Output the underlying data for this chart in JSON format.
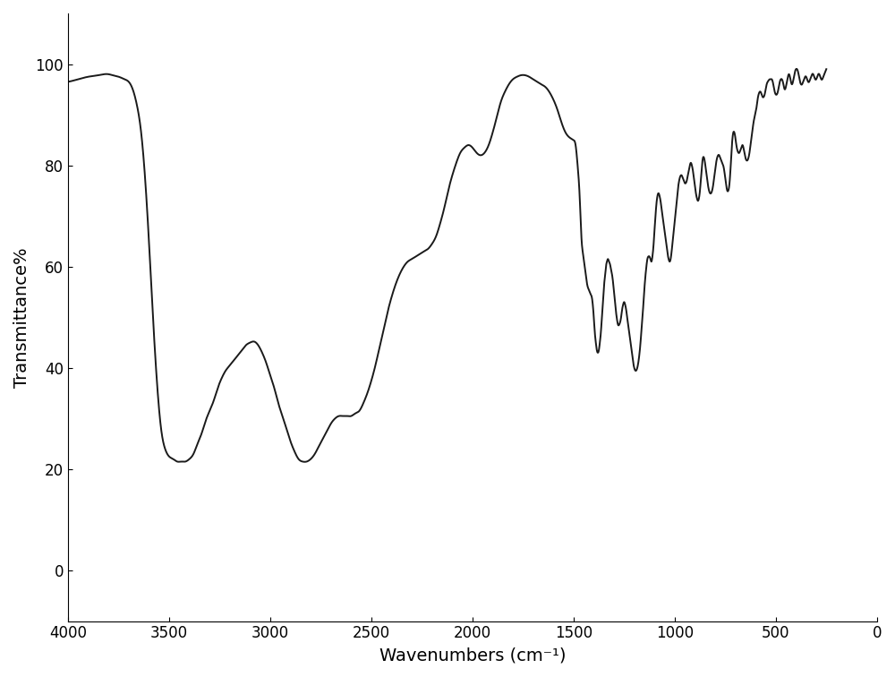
{
  "title": "",
  "xlabel": "Wavenumbers (cm⁻¹)",
  "ylabel": "Transmittance%",
  "xlim": [
    4000,
    0
  ],
  "ylim": [
    -10,
    110
  ],
  "xticks": [
    4000,
    3500,
    3000,
    2500,
    2000,
    1500,
    1000,
    500,
    0
  ],
  "yticks": [
    0,
    20,
    40,
    60,
    80,
    100
  ],
  "background_color": "#ffffff",
  "line_color": "#1a1a1a",
  "line_width": 1.4,
  "keypoints": [
    [
      4000,
      96.5
    ],
    [
      3950,
      97.0
    ],
    [
      3900,
      97.5
    ],
    [
      3850,
      97.8
    ],
    [
      3800,
      98.0
    ],
    [
      3780,
      97.8
    ],
    [
      3750,
      97.5
    ],
    [
      3720,
      97.0
    ],
    [
      3700,
      96.5
    ],
    [
      3680,
      95.0
    ],
    [
      3660,
      92.0
    ],
    [
      3640,
      87.0
    ],
    [
      3620,
      78.0
    ],
    [
      3600,
      65.0
    ],
    [
      3580,
      50.0
    ],
    [
      3560,
      37.0
    ],
    [
      3540,
      28.0
    ],
    [
      3520,
      24.0
    ],
    [
      3500,
      22.5
    ],
    [
      3480,
      22.0
    ],
    [
      3460,
      21.5
    ],
    [
      3440,
      21.5
    ],
    [
      3420,
      21.5
    ],
    [
      3400,
      22.0
    ],
    [
      3380,
      23.0
    ],
    [
      3360,
      25.0
    ],
    [
      3340,
      27.0
    ],
    [
      3320,
      29.5
    ],
    [
      3300,
      31.5
    ],
    [
      3280,
      33.5
    ],
    [
      3260,
      36.0
    ],
    [
      3240,
      38.0
    ],
    [
      3220,
      39.5
    ],
    [
      3200,
      40.5
    ],
    [
      3180,
      41.5
    ],
    [
      3160,
      42.5
    ],
    [
      3140,
      43.5
    ],
    [
      3120,
      44.5
    ],
    [
      3100,
      45.0
    ],
    [
      3080,
      45.2
    ],
    [
      3060,
      44.5
    ],
    [
      3040,
      43.0
    ],
    [
      3020,
      41.0
    ],
    [
      3000,
      38.5
    ],
    [
      2980,
      36.0
    ],
    [
      2960,
      33.0
    ],
    [
      2940,
      30.5
    ],
    [
      2920,
      28.0
    ],
    [
      2900,
      25.5
    ],
    [
      2880,
      23.5
    ],
    [
      2860,
      22.0
    ],
    [
      2840,
      21.5
    ],
    [
      2820,
      21.5
    ],
    [
      2800,
      22.0
    ],
    [
      2780,
      23.0
    ],
    [
      2760,
      24.5
    ],
    [
      2740,
      26.0
    ],
    [
      2720,
      27.5
    ],
    [
      2700,
      29.0
    ],
    [
      2680,
      30.0
    ],
    [
      2660,
      30.5
    ],
    [
      2640,
      30.5
    ],
    [
      2620,
      30.5
    ],
    [
      2600,
      30.5
    ],
    [
      2580,
      31.0
    ],
    [
      2560,
      31.5
    ],
    [
      2540,
      33.0
    ],
    [
      2520,
      35.0
    ],
    [
      2500,
      37.5
    ],
    [
      2480,
      40.5
    ],
    [
      2460,
      44.0
    ],
    [
      2440,
      47.5
    ],
    [
      2420,
      51.0
    ],
    [
      2400,
      54.0
    ],
    [
      2380,
      56.5
    ],
    [
      2360,
      58.5
    ],
    [
      2340,
      60.0
    ],
    [
      2320,
      61.0
    ],
    [
      2300,
      61.5
    ],
    [
      2280,
      62.0
    ],
    [
      2260,
      62.5
    ],
    [
      2240,
      63.0
    ],
    [
      2220,
      63.5
    ],
    [
      2200,
      64.5
    ],
    [
      2180,
      66.0
    ],
    [
      2160,
      68.5
    ],
    [
      2140,
      71.5
    ],
    [
      2120,
      75.0
    ],
    [
      2100,
      78.0
    ],
    [
      2080,
      80.5
    ],
    [
      2060,
      82.5
    ],
    [
      2040,
      83.5
    ],
    [
      2020,
      84.0
    ],
    [
      2000,
      83.5
    ],
    [
      1980,
      82.5
    ],
    [
      1960,
      82.0
    ],
    [
      1940,
      82.5
    ],
    [
      1920,
      84.0
    ],
    [
      1900,
      86.5
    ],
    [
      1880,
      89.5
    ],
    [
      1860,
      92.5
    ],
    [
      1840,
      94.5
    ],
    [
      1820,
      96.0
    ],
    [
      1800,
      97.0
    ],
    [
      1780,
      97.5
    ],
    [
      1760,
      97.8
    ],
    [
      1740,
      97.8
    ],
    [
      1720,
      97.5
    ],
    [
      1700,
      97.0
    ],
    [
      1680,
      96.5
    ],
    [
      1660,
      96.0
    ],
    [
      1640,
      95.5
    ],
    [
      1620,
      94.5
    ],
    [
      1600,
      93.0
    ],
    [
      1580,
      91.0
    ],
    [
      1560,
      88.5
    ],
    [
      1540,
      86.5
    ],
    [
      1520,
      85.5
    ],
    [
      1500,
      85.0
    ],
    [
      1490,
      84.0
    ],
    [
      1480,
      80.0
    ],
    [
      1470,
      74.0
    ],
    [
      1460,
      65.0
    ],
    [
      1455,
      63.0
    ],
    [
      1450,
      61.5
    ],
    [
      1445,
      60.0
    ],
    [
      1440,
      58.5
    ],
    [
      1435,
      57.0
    ],
    [
      1430,
      56.0
    ],
    [
      1425,
      55.5
    ],
    [
      1420,
      55.0
    ],
    [
      1415,
      54.5
    ],
    [
      1410,
      54.0
    ],
    [
      1405,
      52.5
    ],
    [
      1400,
      50.0
    ],
    [
      1395,
      47.0
    ],
    [
      1390,
      45.0
    ],
    [
      1385,
      43.5
    ],
    [
      1380,
      43.0
    ],
    [
      1375,
      43.5
    ],
    [
      1370,
      45.0
    ],
    [
      1365,
      47.0
    ],
    [
      1360,
      50.0
    ],
    [
      1355,
      53.0
    ],
    [
      1350,
      56.0
    ],
    [
      1345,
      58.0
    ],
    [
      1340,
      60.0
    ],
    [
      1335,
      61.0
    ],
    [
      1330,
      61.5
    ],
    [
      1325,
      61.0
    ],
    [
      1320,
      60.5
    ],
    [
      1315,
      59.5
    ],
    [
      1310,
      58.5
    ],
    [
      1305,
      57.0
    ],
    [
      1300,
      55.0
    ],
    [
      1295,
      53.0
    ],
    [
      1290,
      51.0
    ],
    [
      1285,
      49.5
    ],
    [
      1280,
      48.5
    ],
    [
      1275,
      48.5
    ],
    [
      1270,
      49.0
    ],
    [
      1265,
      50.0
    ],
    [
      1260,
      51.5
    ],
    [
      1255,
      52.5
    ],
    [
      1250,
      53.0
    ],
    [
      1245,
      52.5
    ],
    [
      1240,
      51.5
    ],
    [
      1235,
      50.0
    ],
    [
      1230,
      48.5
    ],
    [
      1225,
      47.0
    ],
    [
      1220,
      45.5
    ],
    [
      1215,
      44.0
    ],
    [
      1210,
      42.5
    ],
    [
      1205,
      41.0
    ],
    [
      1200,
      40.0
    ],
    [
      1195,
      39.5
    ],
    [
      1190,
      39.5
    ],
    [
      1185,
      40.0
    ],
    [
      1180,
      41.0
    ],
    [
      1175,
      42.5
    ],
    [
      1170,
      44.5
    ],
    [
      1165,
      47.0
    ],
    [
      1160,
      49.5
    ],
    [
      1155,
      52.5
    ],
    [
      1150,
      55.5
    ],
    [
      1145,
      58.0
    ],
    [
      1140,
      60.0
    ],
    [
      1135,
      61.5
    ],
    [
      1130,
      62.0
    ],
    [
      1125,
      62.0
    ],
    [
      1120,
      61.5
    ],
    [
      1115,
      61.0
    ],
    [
      1110,
      62.0
    ],
    [
      1105,
      64.0
    ],
    [
      1100,
      67.0
    ],
    [
      1095,
      70.0
    ],
    [
      1090,
      72.5
    ],
    [
      1085,
      74.0
    ],
    [
      1080,
      74.5
    ],
    [
      1075,
      74.0
    ],
    [
      1070,
      73.0
    ],
    [
      1065,
      71.5
    ],
    [
      1060,
      70.0
    ],
    [
      1055,
      68.5
    ],
    [
      1050,
      67.0
    ],
    [
      1045,
      65.5
    ],
    [
      1040,
      64.0
    ],
    [
      1035,
      62.5
    ],
    [
      1030,
      61.5
    ],
    [
      1025,
      61.0
    ],
    [
      1020,
      61.5
    ],
    [
      1015,
      63.0
    ],
    [
      1010,
      65.0
    ],
    [
      1005,
      67.0
    ],
    [
      1000,
      69.0
    ],
    [
      995,
      71.0
    ],
    [
      990,
      73.0
    ],
    [
      985,
      75.0
    ],
    [
      980,
      76.5
    ],
    [
      975,
      77.5
    ],
    [
      970,
      78.0
    ],
    [
      965,
      78.0
    ],
    [
      960,
      77.5
    ],
    [
      955,
      77.0
    ],
    [
      950,
      76.5
    ],
    [
      945,
      76.5
    ],
    [
      940,
      77.0
    ],
    [
      935,
      78.0
    ],
    [
      930,
      79.0
    ],
    [
      925,
      80.0
    ],
    [
      920,
      80.5
    ],
    [
      915,
      80.0
    ],
    [
      910,
      79.0
    ],
    [
      905,
      77.5
    ],
    [
      900,
      76.0
    ],
    [
      895,
      74.5
    ],
    [
      890,
      73.5
    ],
    [
      885,
      73.0
    ],
    [
      880,
      73.5
    ],
    [
      875,
      75.0
    ],
    [
      870,
      77.5
    ],
    [
      865,
      80.0
    ],
    [
      860,
      81.5
    ],
    [
      855,
      81.5
    ],
    [
      850,
      80.5
    ],
    [
      845,
      79.0
    ],
    [
      840,
      77.5
    ],
    [
      835,
      76.0
    ],
    [
      830,
      75.0
    ],
    [
      825,
      74.5
    ],
    [
      820,
      74.5
    ],
    [
      815,
      75.0
    ],
    [
      810,
      76.0
    ],
    [
      805,
      77.5
    ],
    [
      800,
      79.0
    ],
    [
      795,
      80.5
    ],
    [
      790,
      81.5
    ],
    [
      785,
      82.0
    ],
    [
      780,
      82.0
    ],
    [
      775,
      81.5
    ],
    [
      770,
      81.0
    ],
    [
      765,
      80.5
    ],
    [
      760,
      80.0
    ],
    [
      755,
      79.0
    ],
    [
      750,
      77.5
    ],
    [
      745,
      76.0
    ],
    [
      740,
      75.0
    ],
    [
      735,
      75.0
    ],
    [
      730,
      76.0
    ],
    [
      725,
      78.5
    ],
    [
      720,
      82.0
    ],
    [
      715,
      85.0
    ],
    [
      710,
      86.5
    ],
    [
      705,
      86.5
    ],
    [
      700,
      85.5
    ],
    [
      695,
      84.0
    ],
    [
      690,
      83.0
    ],
    [
      685,
      82.5
    ],
    [
      680,
      82.5
    ],
    [
      675,
      83.0
    ],
    [
      670,
      83.5
    ],
    [
      665,
      84.0
    ],
    [
      660,
      83.5
    ],
    [
      655,
      82.5
    ],
    [
      650,
      81.5
    ],
    [
      645,
      81.0
    ],
    [
      640,
      81.0
    ],
    [
      635,
      81.5
    ],
    [
      630,
      82.5
    ],
    [
      625,
      84.0
    ],
    [
      620,
      85.5
    ],
    [
      615,
      87.0
    ],
    [
      610,
      88.5
    ],
    [
      605,
      89.5
    ],
    [
      600,
      90.5
    ],
    [
      595,
      91.5
    ],
    [
      590,
      93.0
    ],
    [
      585,
      94.0
    ],
    [
      580,
      94.5
    ],
    [
      575,
      94.5
    ],
    [
      570,
      94.0
    ],
    [
      565,
      93.5
    ],
    [
      560,
      93.5
    ],
    [
      555,
      94.0
    ],
    [
      550,
      95.0
    ],
    [
      545,
      96.0
    ],
    [
      540,
      96.5
    ],
    [
      535,
      96.8
    ],
    [
      530,
      97.0
    ],
    [
      525,
      97.0
    ],
    [
      520,
      97.0
    ],
    [
      515,
      96.5
    ],
    [
      510,
      95.5
    ],
    [
      505,
      94.5
    ],
    [
      500,
      94.0
    ],
    [
      495,
      94.0
    ],
    [
      490,
      94.5
    ],
    [
      485,
      95.5
    ],
    [
      480,
      96.5
    ],
    [
      475,
      97.0
    ],
    [
      470,
      97.0
    ],
    [
      465,
      96.5
    ],
    [
      460,
      95.5
    ],
    [
      455,
      95.0
    ],
    [
      450,
      95.5
    ],
    [
      445,
      96.5
    ],
    [
      440,
      97.5
    ],
    [
      435,
      98.0
    ],
    [
      430,
      97.5
    ],
    [
      425,
      96.5
    ],
    [
      420,
      96.0
    ],
    [
      415,
      96.5
    ],
    [
      410,
      97.5
    ],
    [
      405,
      98.5
    ],
    [
      400,
      99.0
    ],
    [
      395,
      99.0
    ],
    [
      390,
      98.5
    ],
    [
      385,
      97.5
    ],
    [
      380,
      96.5
    ],
    [
      375,
      96.0
    ],
    [
      370,
      96.0
    ],
    [
      365,
      96.5
    ],
    [
      360,
      97.0
    ],
    [
      355,
      97.5
    ],
    [
      350,
      97.5
    ],
    [
      345,
      97.0
    ],
    [
      340,
      96.5
    ],
    [
      335,
      96.5
    ],
    [
      330,
      97.0
    ],
    [
      325,
      97.5
    ],
    [
      320,
      98.0
    ],
    [
      315,
      98.0
    ],
    [
      310,
      97.5
    ],
    [
      305,
      97.0
    ],
    [
      300,
      97.0
    ],
    [
      295,
      97.5
    ],
    [
      290,
      98.0
    ],
    [
      285,
      98.0
    ],
    [
      280,
      97.5
    ],
    [
      275,
      97.0
    ],
    [
      270,
      97.0
    ],
    [
      265,
      97.5
    ],
    [
      260,
      98.0
    ],
    [
      255,
      98.5
    ],
    [
      250,
      99.0
    ]
  ]
}
